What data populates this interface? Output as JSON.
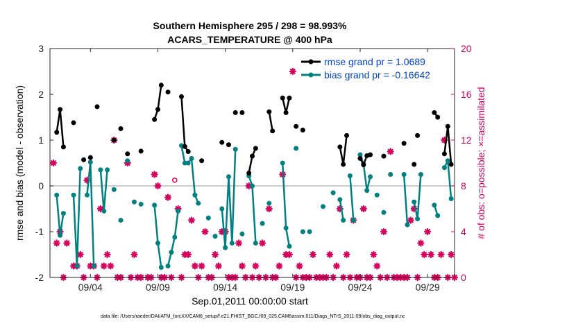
{
  "chart_data": {
    "type": "line",
    "title": "Southern Hemisphere 295 / 298 = 98.993%",
    "subtitle": "ACARS_TEMPERATURE @ 400 hPa",
    "xlabel": "Sep.01,2011 00:00:00 start",
    "ylabel": "rmse and bias (model - observation)",
    "y2label": "# of obs: o=possible; ×=assimilated",
    "footnote": "data file: /Users/raeder/DAI/ATM_forcXX/CAM6_setup/f.e21.FHIST_BGC.f09_025.CAM6assim.011/Diags_NTrS_2011-09/obs_diag_output.nc",
    "xlim": [
      1,
      31
    ],
    "ylim": [
      -2,
      3
    ],
    "y2lim": [
      0,
      20
    ],
    "x_ticks": [
      4,
      9,
      14,
      19,
      24,
      29
    ],
    "x_tick_labels": [
      "09/04",
      "09/09",
      "09/14",
      "09/19",
      "09/24",
      "09/29"
    ],
    "y_ticks": [
      -2,
      -1,
      0,
      1,
      2,
      3
    ],
    "y_tick_labels": [
      "-2",
      "-1",
      "0",
      "1",
      "2",
      "3"
    ],
    "y2_ticks": [
      0,
      4,
      8,
      12,
      16,
      20
    ],
    "y2_tick_labels": [
      "0",
      "4",
      "8",
      "12",
      "16",
      "20"
    ],
    "zero_line": 0,
    "legend_placement": "top-right",
    "colors": {
      "rmse": "#000000",
      "bias": "#008080",
      "obs": "#d6005c",
      "zero": "#bdbdbd",
      "legend_text": "#0044cc"
    },
    "series": [
      {
        "name": "rmse grand pr = 1.0689",
        "axis": "left",
        "segments": [
          [
            [
              1.5,
              1.17
            ],
            [
              1.75,
              1.67
            ],
            [
              2.0,
              0.85
            ]
          ],
          [
            [
              2.75,
              1.38
            ]
          ],
          [
            [
              3.5,
              0.57
            ]
          ],
          [
            [
              4.0,
              0.62
            ]
          ],
          [
            [
              4.5,
              1.73
            ]
          ],
          [
            [
              5.75,
              1.0
            ]
          ],
          [
            [
              6.25,
              1.25
            ]
          ],
          [
            [
              6.75,
              0.7
            ]
          ],
          [
            [
              7.75,
              0.76
            ]
          ],
          [
            [
              8.75,
              1.45
            ],
            [
              9.0,
              1.67
            ],
            [
              9.25,
              2.2
            ]
          ],
          [
            [
              9.75,
              2.05
            ]
          ],
          [
            [
              10.75,
              1.95
            ],
            [
              11.0,
              0.86
            ],
            [
              11.25,
              0.75
            ]
          ],
          [
            [
              12.25,
              0.55
            ]
          ],
          [
            [
              13.75,
              0.95
            ]
          ],
          [
            [
              14.25,
              0.9
            ]
          ],
          [
            [
              14.75,
              1.6
            ]
          ],
          [
            [
              15.25,
              1.6
            ]
          ],
          [
            [
              15.75,
              0.28
            ],
            [
              16.0,
              0.65
            ],
            [
              16.25,
              0.82
            ]
          ],
          [
            [
              17.25,
              1.62
            ],
            [
              17.5,
              1.2
            ]
          ],
          [
            [
              18.25,
              1.92
            ],
            [
              18.5,
              1.6
            ],
            [
              18.75,
              1.92
            ]
          ],
          [
            [
              19.25,
              1.3
            ]
          ],
          [
            [
              19.75,
              1.22
            ]
          ],
          [
            [
              22.5,
              0.85
            ],
            [
              22.75,
              0.47
            ],
            [
              23.0,
              1.1
            ]
          ],
          [
            [
              24.0,
              0.6
            ],
            [
              24.25,
              0.46
            ],
            [
              24.5,
              0.66
            ],
            [
              24.75,
              0.68
            ]
          ],
          [
            [
              25.75,
              0.65
            ]
          ],
          [
            [
              27.25,
              0.93
            ]
          ],
          [
            [
              28.0,
              0.47
            ]
          ],
          [
            [
              28.25,
              1.1
            ]
          ],
          [
            [
              29.5,
              1.6
            ],
            [
              29.75,
              1.5
            ]
          ],
          [
            [
              30.25,
              0.7
            ],
            [
              30.5,
              1.3
            ],
            [
              30.75,
              0.47
            ]
          ]
        ]
      },
      {
        "name": "bias grand pr = -0.16642",
        "axis": "left",
        "segments": [
          [
            [
              1.5,
              -0.2
            ],
            [
              1.75,
              -1.08
            ],
            [
              2.0,
              -0.6
            ]
          ],
          [
            [
              2.75,
              -0.2
            ],
            [
              3.0,
              -1.75
            ],
            [
              3.25,
              0.38
            ]
          ],
          [
            [
              3.75,
              -0.2
            ],
            [
              4.0,
              0.52
            ],
            [
              4.25,
              -1.75
            ]
          ],
          [
            [
              4.75,
              0.35
            ],
            [
              5.0,
              -0.55
            ],
            [
              5.25,
              0.35
            ]
          ],
          [
            [
              5.75,
              -0.08
            ]
          ],
          [
            [
              6.25,
              -0.75
            ]
          ],
          [
            [
              6.75,
              0.55
            ]
          ],
          [
            [
              7.25,
              -0.35
            ]
          ],
          [
            [
              7.75,
              -0.4
            ]
          ],
          [
            [
              8.75,
              -0.42
            ],
            [
              9.0,
              -1.25
            ],
            [
              9.25,
              -1.78
            ]
          ],
          [
            [
              9.75,
              -1.75
            ],
            [
              10.0,
              -1.45
            ],
            [
              10.25,
              -1.12
            ],
            [
              10.5,
              -0.55
            ]
          ],
          [
            [
              10.75,
              0.88
            ],
            [
              11.0,
              0.5
            ],
            [
              11.25,
              0.5
            ],
            [
              11.5,
              0.6
            ],
            [
              11.75,
              -0.2
            ],
            [
              12.0,
              -0.38
            ]
          ],
          [
            [
              12.75,
              -0.7
            ]
          ],
          [
            [
              13.25,
              -1.1
            ]
          ],
          [
            [
              13.75,
              -0.5
            ],
            [
              14.0,
              -1.35
            ],
            [
              14.25,
              0.2
            ],
            [
              14.5,
              -1.25
            ],
            [
              14.75,
              0.8
            ]
          ],
          [
            [
              15.25,
              -1.05
            ]
          ],
          [
            [
              15.75,
              0.22
            ],
            [
              16.0,
              0.0
            ],
            [
              16.25,
              -1.25
            ]
          ],
          [
            [
              16.75,
              -0.82
            ]
          ],
          [
            [
              17.25,
              -0.38
            ]
          ],
          [
            [
              18.25,
              0.5
            ],
            [
              18.5,
              -0.92
            ],
            [
              18.75,
              -1.32
            ]
          ],
          [
            [
              19.25,
              0.82
            ]
          ],
          [
            [
              19.75,
              -1.0
            ]
          ],
          [
            [
              20.25,
              -1.0
            ]
          ],
          [
            [
              21.25,
              -0.45
            ]
          ],
          [
            [
              22.0,
              -0.15
            ]
          ],
          [
            [
              22.5,
              -0.3
            ],
            [
              22.75,
              -0.75
            ]
          ],
          [
            [
              23.25,
              0.22
            ],
            [
              23.5,
              -0.75
            ]
          ],
          [
            [
              24.0,
              0.68
            ],
            [
              24.25,
              0.48
            ],
            [
              24.5,
              -0.1
            ],
            [
              24.75,
              0.2
            ]
          ],
          [
            [
              25.25,
              -0.2
            ]
          ],
          [
            [
              25.75,
              -0.58
            ]
          ],
          [
            [
              26.25,
              0.25
            ]
          ],
          [
            [
              27.25,
              0.25
            ],
            [
              27.5,
              -0.85
            ]
          ],
          [
            [
              28.0,
              -0.35
            ],
            [
              28.25,
              -0.72
            ],
            [
              28.5,
              0.25
            ]
          ],
          [
            [
              29.5,
              -0.42
            ],
            [
              29.75,
              -0.65
            ]
          ],
          [
            [
              30.25,
              0.4
            ],
            [
              30.5,
              0.55
            ],
            [
              30.75,
              -0.28
            ]
          ]
        ]
      },
      {
        "name": "obs possible",
        "axis": "right",
        "marker": "circle",
        "points": [
          [
            10.25,
            8.5
          ]
        ]
      },
      {
        "name": "obs assimilated",
        "axis": "right",
        "marker": "asterisk",
        "points": [
          [
            1.25,
            10
          ],
          [
            1.5,
            3
          ],
          [
            1.75,
            4
          ],
          [
            2.0,
            0
          ],
          [
            2.25,
            3
          ],
          [
            2.75,
            1
          ],
          [
            3.0,
            1
          ],
          [
            3.25,
            2
          ],
          [
            3.5,
            0
          ],
          [
            3.75,
            8.5
          ],
          [
            4.0,
            1
          ],
          [
            4.25,
            1
          ],
          [
            4.5,
            0
          ],
          [
            4.75,
            6
          ],
          [
            5.0,
            1
          ],
          [
            5.25,
            2
          ],
          [
            5.5,
            1
          ],
          [
            5.75,
            12
          ],
          [
            6.0,
            0
          ],
          [
            6.25,
            0
          ],
          [
            6.75,
            10
          ],
          [
            7.0,
            0
          ],
          [
            7.25,
            2
          ],
          [
            7.5,
            0
          ],
          [
            7.75,
            0
          ],
          [
            8.25,
            0
          ],
          [
            8.5,
            0
          ],
          [
            8.75,
            9
          ],
          [
            9.0,
            8
          ],
          [
            9.25,
            0
          ],
          [
            9.5,
            0
          ],
          [
            9.75,
            7
          ],
          [
            10.0,
            0
          ],
          [
            10.5,
            6
          ],
          [
            10.75,
            0
          ],
          [
            11.0,
            2
          ],
          [
            11.25,
            2
          ],
          [
            11.5,
            5
          ],
          [
            11.75,
            1
          ],
          [
            12.0,
            0
          ],
          [
            12.25,
            1
          ],
          [
            12.5,
            4
          ],
          [
            12.75,
            0
          ],
          [
            13.0,
            0
          ],
          [
            13.25,
            2
          ],
          [
            13.5,
            1
          ],
          [
            13.75,
            4
          ],
          [
            14.0,
            4
          ],
          [
            14.25,
            0
          ],
          [
            14.5,
            0
          ],
          [
            14.75,
            0
          ],
          [
            15.0,
            3
          ],
          [
            15.25,
            1
          ],
          [
            15.5,
            0
          ],
          [
            15.75,
            8
          ],
          [
            16.0,
            0
          ],
          [
            16.25,
            1
          ],
          [
            16.5,
            0
          ],
          [
            16.75,
            3
          ],
          [
            17.0,
            0
          ],
          [
            17.25,
            6
          ],
          [
            17.5,
            0
          ],
          [
            17.75,
            0
          ],
          [
            18.0,
            1
          ],
          [
            18.25,
            9
          ],
          [
            18.5,
            2
          ],
          [
            18.75,
            2
          ],
          [
            19.0,
            18
          ],
          [
            19.25,
            0
          ],
          [
            19.5,
            1
          ],
          [
            19.75,
            0
          ],
          [
            20.0,
            0
          ],
          [
            20.25,
            0
          ],
          [
            20.5,
            2
          ],
          [
            20.75,
            0
          ],
          [
            21.0,
            0
          ],
          [
            21.25,
            0
          ],
          [
            21.5,
            0
          ],
          [
            21.75,
            2
          ],
          [
            22.0,
            0
          ],
          [
            22.25,
            1
          ],
          [
            22.5,
            6
          ],
          [
            22.75,
            0
          ],
          [
            23.0,
            2
          ],
          [
            23.25,
            0
          ],
          [
            23.5,
            5
          ],
          [
            23.75,
            0
          ],
          [
            24.0,
            0
          ],
          [
            24.25,
            6
          ],
          [
            24.5,
            0
          ],
          [
            24.75,
            0
          ],
          [
            25.0,
            2
          ],
          [
            25.25,
            1
          ],
          [
            25.5,
            0
          ],
          [
            25.75,
            4
          ],
          [
            26.0,
            0
          ],
          [
            26.25,
            11
          ],
          [
            26.5,
            0
          ],
          [
            26.75,
            0
          ],
          [
            27.0,
            0
          ],
          [
            27.25,
            0
          ],
          [
            27.5,
            0
          ],
          [
            27.75,
            5
          ],
          [
            28.0,
            6
          ],
          [
            28.25,
            0
          ],
          [
            28.5,
            3
          ],
          [
            28.75,
            2
          ],
          [
            29.0,
            4
          ],
          [
            29.25,
            2
          ],
          [
            29.5,
            0
          ],
          [
            29.75,
            0
          ],
          [
            30.0,
            2
          ],
          [
            30.25,
            12
          ],
          [
            30.5,
            0
          ],
          [
            30.75,
            2
          ],
          [
            31.0,
            0
          ]
        ]
      }
    ]
  }
}
